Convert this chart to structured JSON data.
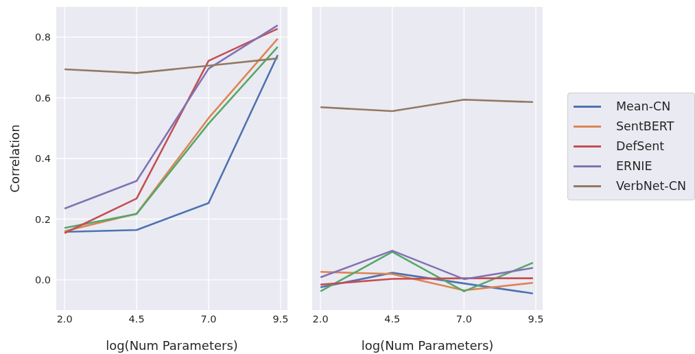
{
  "chart_data": [
    {
      "type": "line",
      "xlabel": "log(Num Parameters)",
      "ylabel": "Correlation",
      "x": [
        2,
        4.5,
        7,
        9.4
      ],
      "xlim": [
        1.71,
        9.74
      ],
      "xticks": [
        {
          "value": 2,
          "label": "2.0"
        },
        {
          "value": 4.5,
          "label": "4.5"
        },
        {
          "value": 7,
          "label": "7.0"
        },
        {
          "value": 9.5,
          "label": "9.5"
        }
      ],
      "ylim": [
        -0.1,
        0.9
      ],
      "yticks": [
        {
          "value": 0,
          "label": "0.0"
        },
        0.2,
        0.4,
        0.6,
        0.8
      ],
      "grid": true,
      "legend": false,
      "series": [
        {
          "color": "#4c72b0",
          "values": [
            0.158,
            0.164,
            0.253,
            0.741
          ]
        },
        {
          "color": "#dd8452",
          "values": [
            0.16,
            0.218,
            0.533,
            0.795
          ]
        },
        {
          "color": "#55a868",
          "values": [
            0.171,
            0.217,
            0.515,
            0.768
          ]
        },
        {
          "color": "#c44e52",
          "values": [
            0.154,
            0.268,
            0.722,
            0.828
          ]
        },
        {
          "color": "#8172b3",
          "values": [
            0.235,
            0.326,
            0.696,
            0.839
          ]
        },
        {
          "color": "#937860",
          "values": [
            0.694,
            0.682,
            0.706,
            0.73
          ]
        }
      ]
    },
    {
      "type": "line",
      "xlabel": "log(Num Parameters)",
      "x": [
        2,
        4.5,
        7,
        9.4
      ],
      "xlim": [
        1.71,
        9.74
      ],
      "xticks": [
        {
          "value": 2,
          "label": "2.0"
        },
        {
          "value": 4.5,
          "label": "4.5"
        },
        {
          "value": 7,
          "label": "7.0"
        },
        {
          "value": 9.5,
          "label": "9.5"
        }
      ],
      "ylim": [
        -0.1,
        0.9
      ],
      "yticks": [
        0,
        0.2,
        0.4,
        0.6,
        0.8
      ],
      "tick_labels": "x",
      "grid": true,
      "legend": "right",
      "series": [
        {
          "name": "Mean-CN",
          "color": "#4c72b0",
          "values": [
            -0.025,
            0.023,
            -0.012,
            -0.045
          ]
        },
        {
          "name": "SentBERT",
          "color": "#dd8452",
          "values": [
            0.026,
            0.019,
            -0.035,
            -0.01
          ]
        },
        {
          "color": "#55a868",
          "values": [
            -0.038,
            0.092,
            -0.038,
            0.056
          ]
        },
        {
          "name": "DefSent",
          "color": "#c44e52",
          "values": [
            -0.016,
            0.003,
            0.005,
            0.005
          ]
        },
        {
          "name": "ERNIE",
          "color": "#8172b3",
          "values": [
            0.008,
            0.096,
            0.002,
            0.039
          ]
        },
        {
          "name": "VerbNet-CN",
          "color": "#937860",
          "values": [
            0.569,
            0.556,
            0.594,
            0.586
          ]
        }
      ]
    }
  ]
}
